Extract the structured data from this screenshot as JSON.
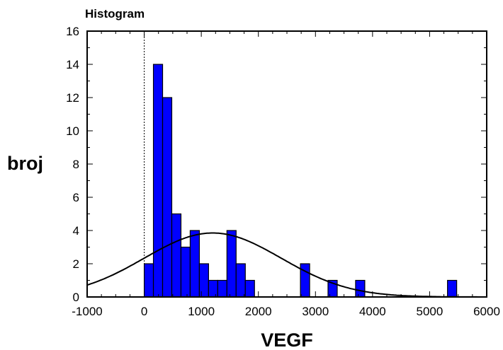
{
  "chart_data": {
    "type": "bar",
    "title": "Histogram",
    "xlabel": "VEGF",
    "ylabel": "broj",
    "xlim": [
      -1000,
      6000
    ],
    "ylim": [
      0,
      16
    ],
    "x_ticks": [
      "-1000",
      "0",
      "1000",
      "2000",
      "3000",
      "4000",
      "5000",
      "6000"
    ],
    "y_ticks": [
      "0",
      "2",
      "4",
      "6",
      "8",
      "10",
      "12",
      "14",
      "16"
    ],
    "bin_width": 161,
    "bins": [
      {
        "x0": 0,
        "count": 2
      },
      {
        "x0": 161,
        "count": 14
      },
      {
        "x0": 322,
        "count": 12
      },
      {
        "x0": 483,
        "count": 5
      },
      {
        "x0": 644,
        "count": 3
      },
      {
        "x0": 805,
        "count": 4
      },
      {
        "x0": 966,
        "count": 2
      },
      {
        "x0": 1127,
        "count": 1
      },
      {
        "x0": 1288,
        "count": 1
      },
      {
        "x0": 1449,
        "count": 4
      },
      {
        "x0": 1610,
        "count": 2
      },
      {
        "x0": 1771,
        "count": 1
      },
      {
        "x0": 2737,
        "count": 2
      },
      {
        "x0": 3220,
        "count": 1
      },
      {
        "x0": 3703,
        "count": 1
      },
      {
        "x0": 5313,
        "count": 1
      }
    ],
    "normal_curve": {
      "mean": 1200,
      "sd": 1200,
      "peak": 3.85
    },
    "zero_line": 0,
    "grid": false,
    "colors": {
      "bar_fill": "#0000ff",
      "bar_stroke": "#000000",
      "curve": "#000000"
    }
  }
}
